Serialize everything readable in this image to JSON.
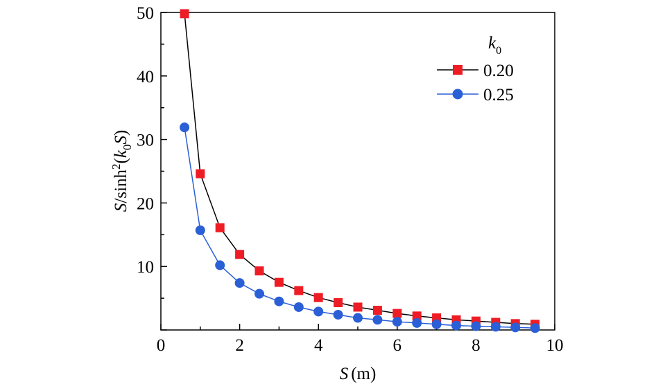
{
  "chart_data": {
    "type": "line",
    "xlabel": {
      "var": "S",
      "unit": "(m)"
    },
    "ylabel": {
      "prefix": "S",
      "middle": "/sinh",
      "sup": "2",
      "open": "(",
      "k": "k",
      "sub": "0",
      "var": "S",
      "close": ")"
    },
    "xlim": [
      0,
      10
    ],
    "ylim": [
      0,
      50
    ],
    "x_ticks": [
      "0",
      "2",
      "4",
      "6",
      "8",
      "10"
    ],
    "y_ticks": [
      "10",
      "20",
      "30",
      "40",
      "50"
    ],
    "legend": {
      "title": "k",
      "title_sub": "0",
      "position": "top-right"
    },
    "series": [
      {
        "name": "0.20",
        "marker": "square",
        "line_color": "#000000",
        "marker_color": "#ee1c25",
        "x": [
          0.6,
          1.0,
          1.5,
          2.0,
          2.5,
          3.0,
          3.5,
          4.0,
          4.5,
          5.0,
          5.5,
          6.0,
          6.5,
          7.0,
          7.5,
          8.0,
          8.5,
          9.0,
          9.5
        ],
        "y": [
          49.8,
          24.6,
          16.1,
          11.9,
          9.3,
          7.5,
          6.2,
          5.1,
          4.3,
          3.6,
          3.1,
          2.6,
          2.2,
          1.9,
          1.6,
          1.4,
          1.2,
          1.0,
          0.9
        ]
      },
      {
        "name": "0.25",
        "marker": "circle",
        "line_color": "#2a5fd6",
        "marker_color": "#2a5fd6",
        "x": [
          0.6,
          1.0,
          1.5,
          2.0,
          2.5,
          3.0,
          3.5,
          4.0,
          4.5,
          5.0,
          5.5,
          6.0,
          6.5,
          7.0,
          7.5,
          8.0,
          8.5,
          9.0,
          9.5
        ],
        "y": [
          31.9,
          15.7,
          10.2,
          7.4,
          5.7,
          4.5,
          3.6,
          2.9,
          2.4,
          1.9,
          1.6,
          1.3,
          1.1,
          0.9,
          0.7,
          0.6,
          0.5,
          0.4,
          0.3
        ]
      }
    ]
  }
}
